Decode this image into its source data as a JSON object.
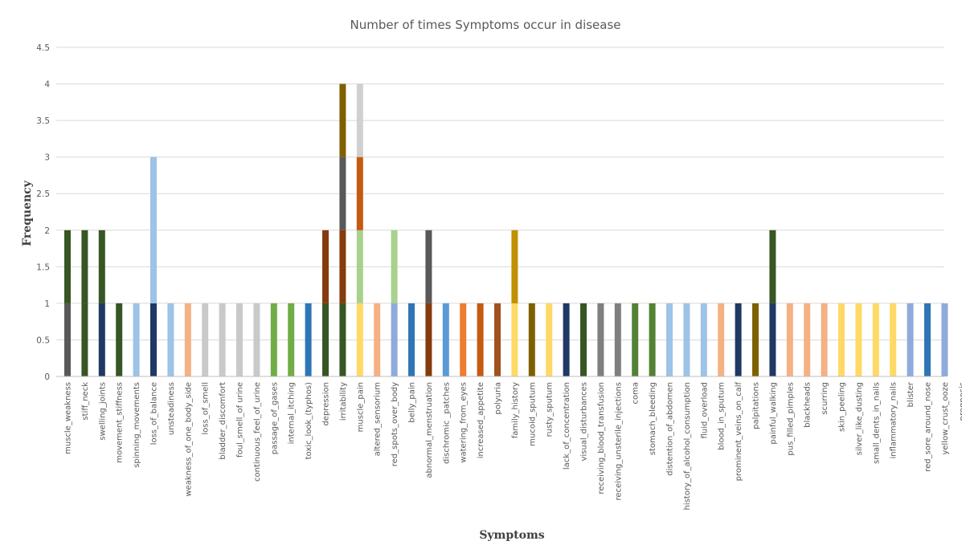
{
  "chart_data": {
    "type": "bar",
    "stacked": true,
    "title": "Number of times Symptoms occur in disease",
    "xlabel": "Symptoms",
    "ylabel": "Frequency",
    "ylim": [
      0,
      4.5
    ],
    "yticks": [
      "0",
      "0.5",
      "1",
      "1.5",
      "2",
      "2.5",
      "3",
      "3.5",
      "4",
      "4.5"
    ],
    "grid": true,
    "legend": "none",
    "categories": [
      "muscle_weakness",
      "stiff_neck",
      "swelling_joints",
      "movement_stiffness",
      "spinning_movements",
      "loss_of_balance",
      "unsteadiness",
      "weakness_of_one_body_side",
      "loss_of_smell",
      "bladder_discomfort",
      "foul_smell_of urine",
      "continuous_feel_of_urine",
      "passage_of_gases",
      "internal_itching",
      "toxic_look_(typhos)",
      "depression",
      "irritability",
      "muscle_pain",
      "altered_sensorium",
      "red_spots_over_body",
      "belly_pain",
      "abnormal_menstruation",
      "dischromic _patches",
      "watering_from_eyes",
      "increased_appetite",
      "polyuria",
      "family_history",
      "mucoid_sputum",
      "rusty_sputum",
      "lack_of_concentration",
      "visual_disturbances",
      "receiving_blood_transfusion",
      "receiving_unsterile_injections",
      "coma",
      "stomach_bleeding",
      "distention_of_abdomen",
      "history_of_alcohol_consumption",
      "fluid_overload",
      "blood_in_sputum",
      "prominent_veins_on_calf",
      "palpitations",
      "painful_walking",
      "pus_filled_pimples",
      "blackheads",
      "scurring",
      "skin_peeling",
      "silver_like_dusting",
      "small_dents_in_nails",
      "inflammatory_nails",
      "blister",
      "red_sore_around_nose",
      "yellow_crust_ooze",
      "prognosis"
    ],
    "series": [
      {
        "values": [
          1,
          1,
          1,
          1,
          1,
          1,
          1,
          1,
          1,
          1,
          1,
          1,
          1,
          1,
          1,
          1,
          1,
          1,
          1,
          1,
          1,
          1,
          1,
          1,
          1,
          1,
          1,
          1,
          1,
          1,
          1,
          1,
          1,
          1,
          1,
          1,
          1,
          1,
          1,
          1,
          1,
          1,
          1,
          1,
          1,
          1,
          1,
          1,
          1,
          1,
          1,
          1,
          0
        ]
      },
      {
        "values": [
          1,
          1,
          1,
          0,
          0,
          1,
          0,
          0,
          0,
          0,
          0,
          0,
          0,
          0,
          0,
          1,
          1,
          1,
          0,
          1,
          0,
          1,
          0,
          0,
          0,
          0,
          1,
          0,
          0,
          0,
          0,
          0,
          0,
          0,
          0,
          0,
          0,
          0,
          0,
          0,
          0,
          1,
          0,
          0,
          0,
          0,
          0,
          0,
          0,
          0,
          0,
          0,
          0
        ]
      },
      {
        "values": [
          0,
          0,
          0,
          0,
          0,
          1,
          0,
          0,
          0,
          0,
          0,
          0,
          0,
          0,
          0,
          0,
          1,
          1,
          0,
          0,
          0,
          0,
          0,
          0,
          0,
          0,
          0,
          0,
          0,
          0,
          0,
          0,
          0,
          0,
          0,
          0,
          0,
          0,
          0,
          0,
          0,
          0,
          0,
          0,
          0,
          0,
          0,
          0,
          0,
          0,
          0,
          0,
          0
        ]
      },
      {
        "values": [
          0,
          0,
          0,
          0,
          0,
          0,
          0,
          0,
          0,
          0,
          0,
          0,
          0,
          0,
          0,
          0,
          1,
          1,
          0,
          0,
          0,
          0,
          0,
          0,
          0,
          0,
          0,
          0,
          0,
          0,
          0,
          0,
          0,
          0,
          0,
          0,
          0,
          0,
          0,
          0,
          0,
          0,
          0,
          0,
          0,
          0,
          0,
          0,
          0,
          0,
          0,
          0,
          0
        ]
      }
    ],
    "segment_colors": [
      [
        "#595959",
        "#375623"
      ],
      [
        "#375623",
        "#375623"
      ],
      [
        "#1f3864",
        "#375623"
      ],
      [
        "#375623"
      ],
      [
        "#9dc3e6"
      ],
      [
        "#1f3864",
        "#9dc3e6",
        "#9dc3e6"
      ],
      [
        "#9dc3e6"
      ],
      [
        "#f4b183"
      ],
      [
        "#c9c9c9"
      ],
      [
        "#c9c9c9"
      ],
      [
        "#c9c9c9"
      ],
      [
        "#c9c9c9"
      ],
      [
        "#70ad47"
      ],
      [
        "#70ad47"
      ],
      [
        "#2e75b6"
      ],
      [
        "#375623",
        "#843c0c"
      ],
      [
        "#375623",
        "#843c0c",
        "#595959",
        "#7f6000"
      ],
      [
        "#ffd966",
        "#a9d18e",
        "#c55a11",
        "#d0d0d0"
      ],
      [
        "#f4b183"
      ],
      [
        "#8faadc",
        "#a9d18e"
      ],
      [
        "#2e75b6"
      ],
      [
        "#843c0c",
        "#595959"
      ],
      [
        "#5b9bd5"
      ],
      [
        "#ed7d31"
      ],
      [
        "#c55a11"
      ],
      [
        "#a0521d"
      ],
      [
        "#ffd966",
        "#bf9000"
      ],
      [
        "#7f6000"
      ],
      [
        "#ffd966"
      ],
      [
        "#1f3864"
      ],
      [
        "#375623"
      ],
      [
        "#7f7f7f"
      ],
      [
        "#7f7f7f"
      ],
      [
        "#548235"
      ],
      [
        "#548235"
      ],
      [
        "#9dc3e6"
      ],
      [
        "#9dc3e6"
      ],
      [
        "#9dc3e6"
      ],
      [
        "#f4b183"
      ],
      [
        "#1f3864"
      ],
      [
        "#7f6000"
      ],
      [
        "#1f3864",
        "#375623"
      ],
      [
        "#f4b183"
      ],
      [
        "#f4b183"
      ],
      [
        "#f4b183"
      ],
      [
        "#ffd966"
      ],
      [
        "#ffd966"
      ],
      [
        "#ffd966"
      ],
      [
        "#ffd966"
      ],
      [
        "#8faadc"
      ],
      [
        "#2e75b6"
      ],
      [
        "#8faadc"
      ],
      []
    ]
  }
}
